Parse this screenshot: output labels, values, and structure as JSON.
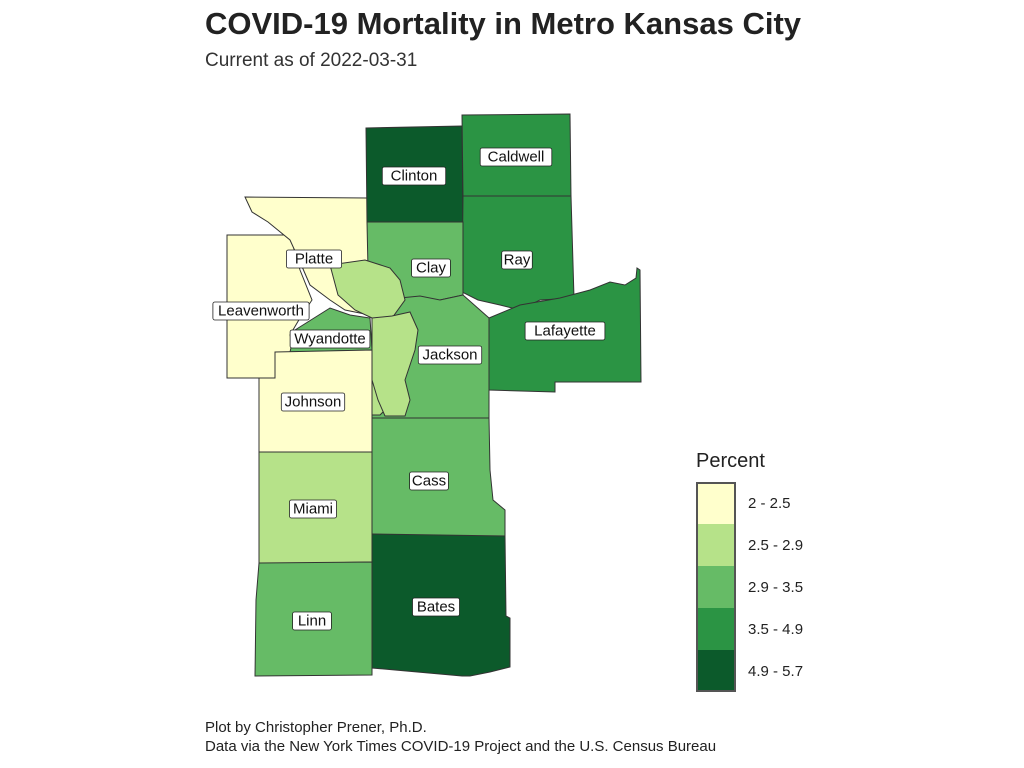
{
  "title": "COVID-19 Mortality in Metro Kansas City",
  "subtitle": "Current as of 2022-03-31",
  "caption_line1": "Plot by Christopher Prener, Ph.D.",
  "caption_line2": "Data via the New York Times COVID-19 Project and the U.S. Census Bureau",
  "legend": {
    "title": "Percent",
    "classes": [
      {
        "label": "2 - 2.5",
        "color": "#ffffcc"
      },
      {
        "label": "2.5 - 2.9",
        "color": "#b6e289"
      },
      {
        "label": "2.9 - 3.5",
        "color": "#66bb66"
      },
      {
        "label": "3.5 - 4.9",
        "color": "#2b9444"
      },
      {
        "label": "4.9 - 5.7",
        "color": "#0c5a2b"
      }
    ]
  },
  "counties": [
    {
      "name": "Clinton",
      "class": "4.9 - 5.7"
    },
    {
      "name": "Caldwell",
      "class": "3.5 - 4.9"
    },
    {
      "name": "Platte",
      "class": "2 - 2.5"
    },
    {
      "name": "Clay",
      "class": "2.9 - 3.5"
    },
    {
      "name": "Ray",
      "class": "3.5 - 4.9"
    },
    {
      "name": "Leavenworth",
      "class": "2 - 2.5"
    },
    {
      "name": "Wyandotte",
      "class": "2.9 - 3.5"
    },
    {
      "name": "Jackson",
      "class": "2.9 - 3.5"
    },
    {
      "name": "Lafayette",
      "class": "3.5 - 4.9"
    },
    {
      "name": "Johnson",
      "class": "2 - 2.5"
    },
    {
      "name": "Cass",
      "class": "2.9 - 3.5"
    },
    {
      "name": "Miami",
      "class": "2.5 - 2.9"
    },
    {
      "name": "Bates",
      "class": "4.9 - 5.7"
    },
    {
      "name": "Linn",
      "class": "2.9 - 3.5"
    }
  ]
}
